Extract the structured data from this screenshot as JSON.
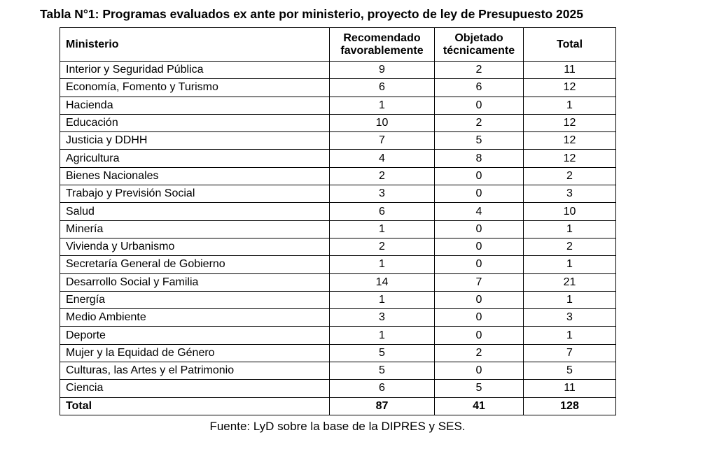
{
  "title": "Tabla N°1: Programas evaluados ex ante por ministerio, proyecto de ley de Presupuesto 2025",
  "table": {
    "header": [
      "Ministerio",
      "Recomendado favorablemente",
      "Objetado técnicamente",
      "Total"
    ],
    "rows": [
      [
        "Interior y Seguridad Pública",
        9,
        2,
        11
      ],
      [
        "Economía, Fomento y Turismo",
        6,
        6,
        12
      ],
      [
        "Hacienda",
        1,
        0,
        1
      ],
      [
        "Educación",
        10,
        2,
        12
      ],
      [
        "Justicia y DDHH",
        7,
        5,
        12
      ],
      [
        "Agricultura",
        4,
        8,
        12
      ],
      [
        "Bienes Nacionales",
        2,
        0,
        2
      ],
      [
        "Trabajo y Previsión Social",
        3,
        0,
        3
      ],
      [
        "Salud",
        6,
        4,
        10
      ],
      [
        "Minería",
        1,
        0,
        1
      ],
      [
        "Vivienda y Urbanismo",
        2,
        0,
        2
      ],
      [
        "Secretaría General de Gobierno",
        1,
        0,
        1
      ],
      [
        "Desarrollo Social y Familia",
        14,
        7,
        21
      ],
      [
        "Energía",
        1,
        0,
        1
      ],
      [
        "Medio Ambiente",
        3,
        0,
        3
      ],
      [
        "Deporte",
        1,
        0,
        1
      ],
      [
        "Mujer y la Equidad de Género",
        5,
        2,
        7
      ],
      [
        "Culturas, las Artes y el Patrimonio",
        5,
        0,
        5
      ],
      [
        "Ciencia",
        6,
        5,
        11
      ]
    ],
    "total": [
      "Total",
      87,
      41,
      128
    ]
  },
  "source": "Fuente: LyD sobre la base de la DIPRES y SES."
}
